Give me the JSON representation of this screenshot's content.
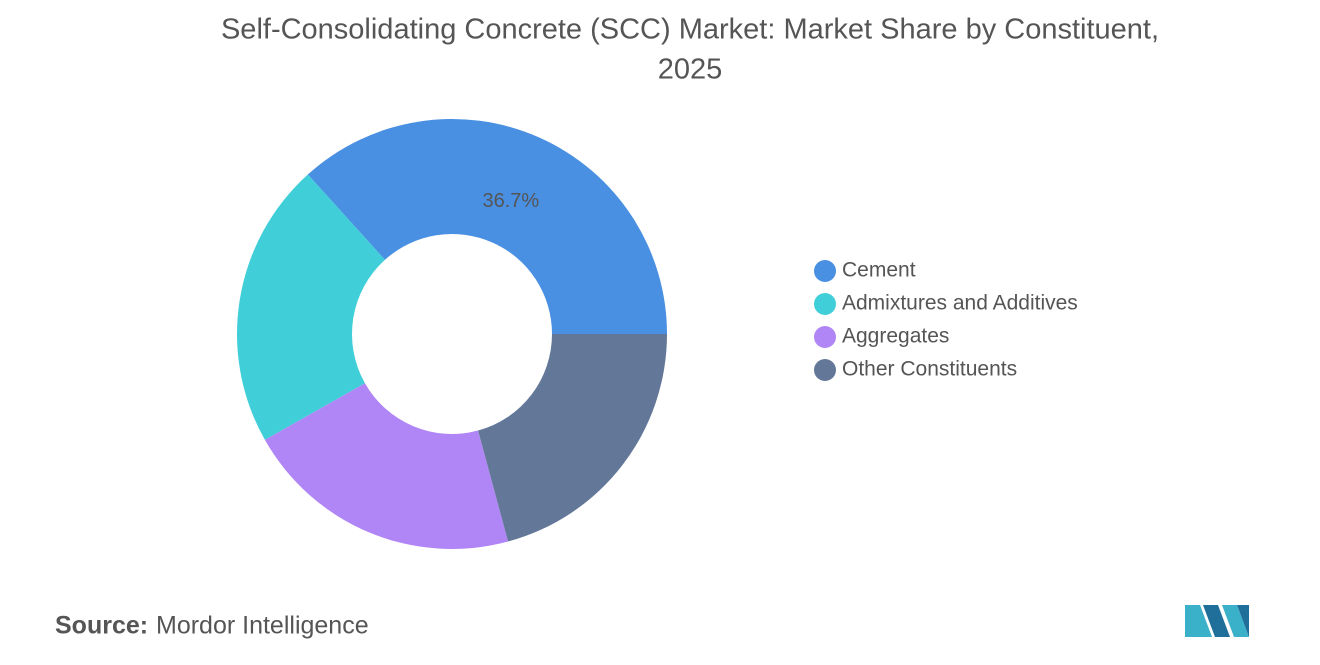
{
  "chart_data": {
    "type": "donut",
    "title": "Self-Consolidating Concrete (SCC) Market: Market Share by Constituent,",
    "subtitle": "2025",
    "categories": [
      "Cement",
      "Admixtures and Additives",
      "Aggregates",
      "Other Constituents"
    ],
    "values": [
      36.7,
      21.5,
      21.0,
      20.8
    ],
    "value_labels": [
      "36.7%",
      null,
      null,
      null
    ],
    "colors": [
      "#4a90e2",
      "#40cfd9",
      "#b085f5",
      "#637899"
    ],
    "legend": "right",
    "source_label": "Source:",
    "source": "Mordor Intelligence"
  }
}
